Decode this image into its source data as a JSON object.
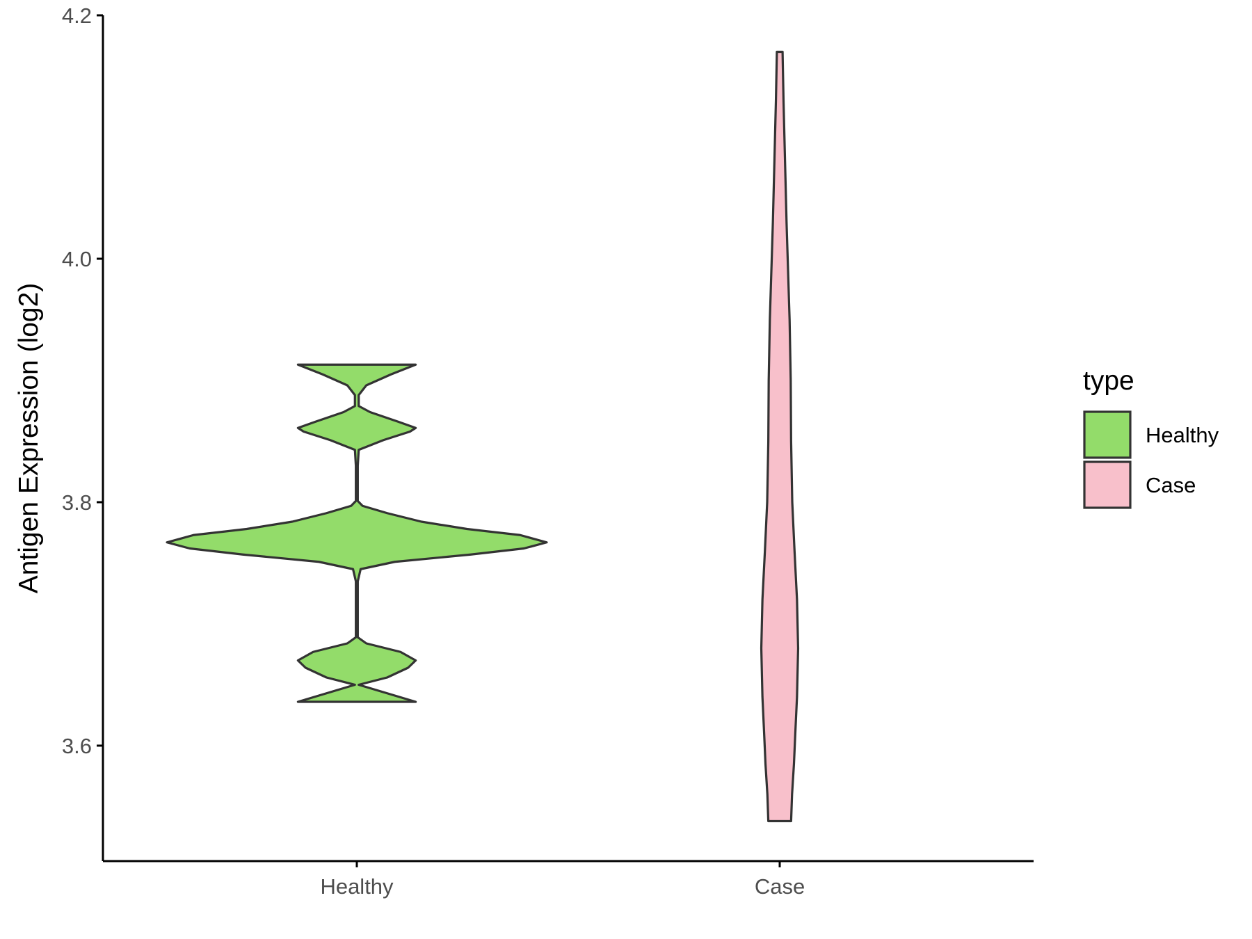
{
  "chart_data": {
    "type": "violin",
    "xlabel": "",
    "ylabel": "Antigen Expression (log2)",
    "ylim": [
      3.507,
      4.2
    ],
    "yticks": [
      3.6,
      3.8,
      4.0,
      4.2
    ],
    "ytick_labels": [
      "3.6",
      "3.8",
      "4.0",
      "4.2"
    ],
    "categories": [
      "Healthy",
      "Case"
    ],
    "grid": false,
    "legend": {
      "title": "type",
      "position": "right",
      "entries": [
        {
          "label": "Healthy",
          "color": "#93DC6A"
        },
        {
          "label": "Case",
          "color": "#F8C0CB"
        }
      ]
    },
    "series": [
      {
        "category": "Healthy",
        "color": "#93DC6A",
        "min": 3.636,
        "max": 3.913,
        "density": [
          [
            3.636,
            0.31
          ],
          [
            3.643,
            0.16
          ],
          [
            3.65,
            0.01
          ],
          [
            3.656,
            0.16
          ],
          [
            3.664,
            0.27
          ],
          [
            3.67,
            0.31
          ],
          [
            3.677,
            0.23
          ],
          [
            3.684,
            0.05
          ],
          [
            3.689,
            0.005
          ],
          [
            3.7,
            0.005
          ],
          [
            3.72,
            0.005
          ],
          [
            3.735,
            0.005
          ],
          [
            3.745,
            0.02
          ],
          [
            3.751,
            0.2
          ],
          [
            3.757,
            0.6
          ],
          [
            3.762,
            0.88
          ],
          [
            3.767,
            1.0
          ],
          [
            3.773,
            0.86
          ],
          [
            3.778,
            0.58
          ],
          [
            3.784,
            0.34
          ],
          [
            3.791,
            0.16
          ],
          [
            3.797,
            0.03
          ],
          [
            3.801,
            0.005
          ],
          [
            3.815,
            0.005
          ],
          [
            3.83,
            0.005
          ],
          [
            3.843,
            0.01
          ],
          [
            3.851,
            0.14
          ],
          [
            3.858,
            0.28
          ],
          [
            3.861,
            0.31
          ],
          [
            3.866,
            0.22
          ],
          [
            3.874,
            0.07
          ],
          [
            3.879,
            0.01
          ],
          [
            3.888,
            0.01
          ],
          [
            3.896,
            0.05
          ],
          [
            3.905,
            0.18
          ],
          [
            3.913,
            0.31
          ]
        ]
      },
      {
        "category": "Case",
        "color": "#F8C0CB",
        "min": 3.538,
        "max": 4.17,
        "density": [
          [
            3.538,
            0.06
          ],
          [
            3.56,
            0.065
          ],
          [
            3.585,
            0.075
          ],
          [
            3.61,
            0.082
          ],
          [
            3.64,
            0.091
          ],
          [
            3.68,
            0.097
          ],
          [
            3.72,
            0.091
          ],
          [
            3.76,
            0.078
          ],
          [
            3.8,
            0.066
          ],
          [
            3.85,
            0.06
          ],
          [
            3.9,
            0.058
          ],
          [
            3.95,
            0.052
          ],
          [
            3.99,
            0.044
          ],
          [
            4.03,
            0.036
          ],
          [
            4.08,
            0.028
          ],
          [
            4.13,
            0.02
          ],
          [
            4.17,
            0.015
          ]
        ]
      }
    ]
  }
}
